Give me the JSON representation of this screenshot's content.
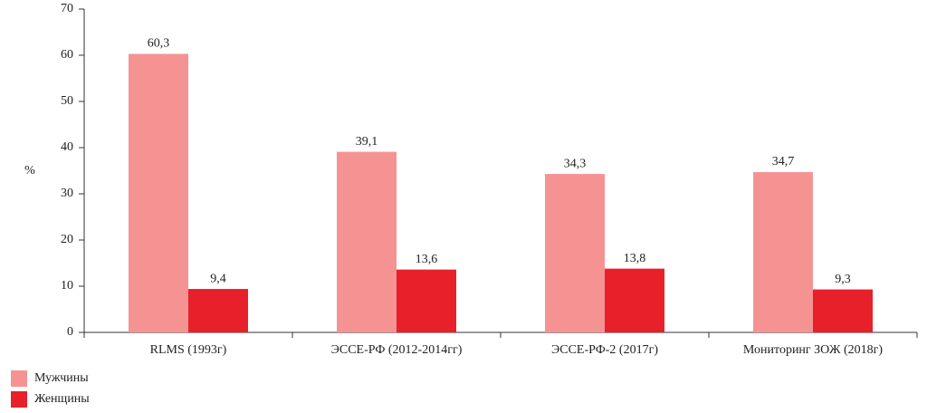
{
  "chart_data": {
    "type": "bar",
    "y_label": "%",
    "categories": [
      "RLMS (1993г)",
      "ЭССЕ-РФ (2012-2014гг)",
      "ЭССЕ-РФ-2 (2017г)",
      "Мониторинг ЗОЖ (2018г)"
    ],
    "series": [
      {
        "name": "Мужчины",
        "color": "#f59393",
        "values": [
          60.3,
          39.1,
          34.3,
          34.7
        ],
        "value_labels": [
          "60,3",
          "39,1",
          "34,3",
          "34,7"
        ]
      },
      {
        "name": "Женщины",
        "color": "#e8202a",
        "values": [
          9.4,
          13.6,
          13.8,
          9.3
        ],
        "value_labels": [
          "9,4",
          "13,6",
          "13,8",
          "9,3"
        ]
      }
    ],
    "ylim": [
      0,
      70
    ],
    "yticks": [
      0,
      10,
      20,
      30,
      40,
      50,
      60,
      70
    ],
    "grid": false
  }
}
